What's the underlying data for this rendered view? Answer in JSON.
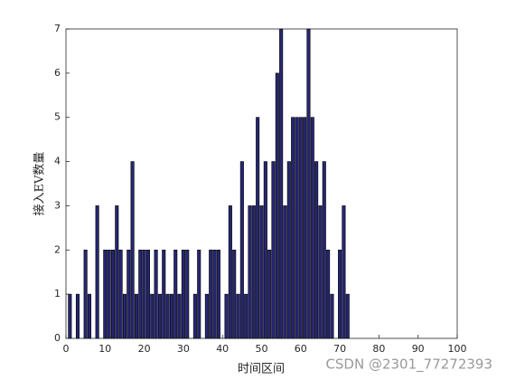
{
  "chart_data": {
    "type": "bar",
    "xlabel": "时间区间",
    "ylabel": "接入EV数量",
    "annotation": "CSDN @2301_77272393",
    "x": [
      1,
      2,
      3,
      4,
      5,
      6,
      7,
      8,
      9,
      10,
      11,
      12,
      13,
      14,
      15,
      16,
      17,
      18,
      19,
      20,
      21,
      22,
      23,
      24,
      25,
      26,
      27,
      28,
      29,
      30,
      31,
      32,
      33,
      34,
      35,
      36,
      37,
      38,
      39,
      40,
      41,
      42,
      43,
      44,
      45,
      46,
      47,
      48,
      49,
      50,
      51,
      52,
      53,
      54,
      55,
      56,
      57,
      58,
      59,
      60,
      61,
      62,
      63,
      64,
      65,
      66,
      67,
      68,
      69,
      70,
      71,
      72
    ],
    "values": [
      1,
      0,
      1,
      0,
      2,
      1,
      0,
      3,
      0,
      2,
      2,
      2,
      3,
      2,
      1,
      2,
      4,
      1,
      2,
      2,
      2,
      1,
      2,
      1,
      2,
      1,
      1,
      2,
      1,
      2,
      2,
      0,
      1,
      2,
      0,
      1,
      2,
      2,
      2,
      0,
      1,
      3,
      2,
      1,
      4,
      1,
      3,
      3,
      5,
      3,
      4,
      2,
      4,
      6,
      7,
      3,
      4,
      5,
      5,
      5,
      5,
      7,
      5,
      4,
      3,
      4,
      2,
      1,
      0,
      2,
      3,
      1
    ],
    "color": "#262673",
    "bar_width": 0.8,
    "xlim": [
      0,
      100
    ],
    "xticks": [
      0,
      10,
      20,
      30,
      40,
      50,
      60,
      70,
      80,
      90,
      100
    ],
    "ylim": [
      0,
      7
    ],
    "yticks": [
      0,
      1,
      2,
      3,
      4,
      5,
      6,
      7
    ],
    "grid": false
  }
}
